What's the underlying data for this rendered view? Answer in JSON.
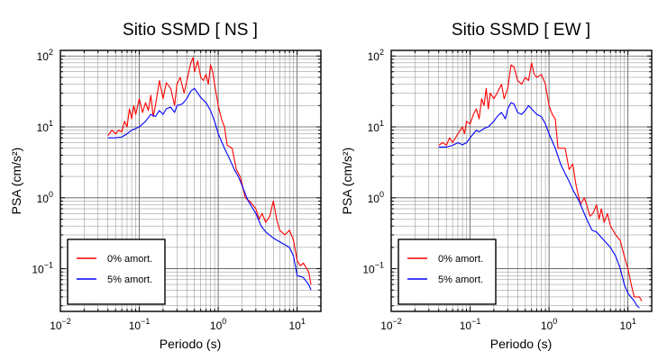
{
  "chart_data": [
    {
      "type": "line",
      "title": "Sitio SSMD [ NS ]",
      "xlabel": "Periodo (s)",
      "ylabel": "PSA (cm/s²)",
      "x_scale": "log",
      "y_scale": "log",
      "xlim": [
        0.01,
        20
      ],
      "ylim": [
        0.025,
        120
      ],
      "x_ticks": [
        0.01,
        0.1,
        1,
        10
      ],
      "x_tick_labels": [
        {
          "base": "10",
          "exp": "−2"
        },
        {
          "base": "10",
          "exp": "−1"
        },
        {
          "base": "10",
          "exp": "0"
        },
        {
          "base": "10",
          "exp": "1"
        }
      ],
      "y_ticks": [
        0.1,
        1,
        10,
        100
      ],
      "y_tick_labels": [
        {
          "base": "10",
          "exp": "−1"
        },
        {
          "base": "10",
          "exp": "0"
        },
        {
          "base": "10",
          "exp": "1"
        },
        {
          "base": "10",
          "exp": "2"
        }
      ],
      "grid": true,
      "legend_position": "bottom-left",
      "series": [
        {
          "name": "0% amort.",
          "color": "#ff0000",
          "points": [
            [
              0.04,
              7.5
            ],
            [
              0.045,
              9
            ],
            [
              0.05,
              8
            ],
            [
              0.055,
              9
            ],
            [
              0.06,
              8.5
            ],
            [
              0.065,
              12
            ],
            [
              0.07,
              10
            ],
            [
              0.075,
              18
            ],
            [
              0.08,
              13
            ],
            [
              0.085,
              20
            ],
            [
              0.09,
              15
            ],
            [
              0.1,
              25
            ],
            [
              0.11,
              16
            ],
            [
              0.12,
              22
            ],
            [
              0.13,
              17
            ],
            [
              0.14,
              28
            ],
            [
              0.15,
              14
            ],
            [
              0.16,
              20
            ],
            [
              0.18,
              45
            ],
            [
              0.2,
              25
            ],
            [
              0.22,
              42
            ],
            [
              0.25,
              35
            ],
            [
              0.28,
              20
            ],
            [
              0.3,
              40
            ],
            [
              0.33,
              50
            ],
            [
              0.37,
              30
            ],
            [
              0.4,
              45
            ],
            [
              0.45,
              80
            ],
            [
              0.48,
              95
            ],
            [
              0.5,
              60
            ],
            [
              0.55,
              85
            ],
            [
              0.6,
              50
            ],
            [
              0.65,
              45
            ],
            [
              0.7,
              55
            ],
            [
              0.75,
              40
            ],
            [
              0.8,
              75
            ],
            [
              0.85,
              60
            ],
            [
              0.9,
              40
            ],
            [
              1.0,
              20
            ],
            [
              1.1,
              13
            ],
            [
              1.2,
              10
            ],
            [
              1.3,
              5.5
            ],
            [
              1.5,
              5
            ],
            [
              1.7,
              2.5
            ],
            [
              1.9,
              2.0
            ],
            [
              2.0,
              1.6
            ],
            [
              2.2,
              1.0
            ],
            [
              2.5,
              0.9
            ],
            [
              3.0,
              0.7
            ],
            [
              3.3,
              0.5
            ],
            [
              3.6,
              0.6
            ],
            [
              4.0,
              0.45
            ],
            [
              4.5,
              0.55
            ],
            [
              5.0,
              0.9
            ],
            [
              5.5,
              0.5
            ],
            [
              6.0,
              0.35
            ],
            [
              7.0,
              0.3
            ],
            [
              8.0,
              0.35
            ],
            [
              9.0,
              0.25
            ],
            [
              10.0,
              0.13
            ],
            [
              11.0,
              0.11
            ],
            [
              12.0,
              0.12
            ],
            [
              14.0,
              0.09
            ],
            [
              15.0,
              0.06
            ]
          ]
        },
        {
          "name": "5% amort.",
          "color": "#0000ff",
          "points": [
            [
              0.04,
              7
            ],
            [
              0.05,
              7
            ],
            [
              0.06,
              7.2
            ],
            [
              0.07,
              8
            ],
            [
              0.08,
              9
            ],
            [
              0.09,
              9.5
            ],
            [
              0.1,
              10
            ],
            [
              0.12,
              12
            ],
            [
              0.14,
              15
            ],
            [
              0.16,
              14
            ],
            [
              0.18,
              17
            ],
            [
              0.2,
              15
            ],
            [
              0.22,
              18
            ],
            [
              0.25,
              19
            ],
            [
              0.28,
              16
            ],
            [
              0.3,
              20
            ],
            [
              0.35,
              21
            ],
            [
              0.4,
              25
            ],
            [
              0.45,
              32
            ],
            [
              0.5,
              35
            ],
            [
              0.55,
              30
            ],
            [
              0.6,
              26
            ],
            [
              0.7,
              22
            ],
            [
              0.8,
              17
            ],
            [
              0.9,
              12
            ],
            [
              1.0,
              8
            ],
            [
              1.2,
              5
            ],
            [
              1.4,
              3.5
            ],
            [
              1.6,
              2.5
            ],
            [
              1.8,
              2.0
            ],
            [
              2.0,
              1.5
            ],
            [
              2.4,
              0.9
            ],
            [
              3.0,
              0.6
            ],
            [
              3.5,
              0.4
            ],
            [
              4.0,
              0.33
            ],
            [
              5.0,
              0.27
            ],
            [
              6.0,
              0.24
            ],
            [
              8.0,
              0.2
            ],
            [
              9.0,
              0.15
            ],
            [
              10.0,
              0.08
            ],
            [
              12.0,
              0.075
            ],
            [
              14.0,
              0.06
            ],
            [
              15.0,
              0.05
            ]
          ]
        }
      ]
    },
    {
      "type": "line",
      "title": "Sitio SSMD [ EW ]",
      "xlabel": "Periodo (s)",
      "ylabel": "PSA (cm/s²)",
      "x_scale": "log",
      "y_scale": "log",
      "xlim": [
        0.01,
        20
      ],
      "ylim": [
        0.025,
        120
      ],
      "x_ticks": [
        0.01,
        0.1,
        1,
        10
      ],
      "x_tick_labels": [
        {
          "base": "10",
          "exp": "−2"
        },
        {
          "base": "10",
          "exp": "−1"
        },
        {
          "base": "10",
          "exp": "0"
        },
        {
          "base": "10",
          "exp": "1"
        }
      ],
      "y_ticks": [
        0.1,
        1,
        10,
        100
      ],
      "y_tick_labels": [
        {
          "base": "10",
          "exp": "−1"
        },
        {
          "base": "10",
          "exp": "0"
        },
        {
          "base": "10",
          "exp": "1"
        },
        {
          "base": "10",
          "exp": "2"
        }
      ],
      "grid": true,
      "legend_position": "bottom-left",
      "series": [
        {
          "name": "0% amort.",
          "color": "#ff0000",
          "points": [
            [
              0.04,
              5.5
            ],
            [
              0.045,
              6
            ],
            [
              0.05,
              5.5
            ],
            [
              0.055,
              7
            ],
            [
              0.06,
              6
            ],
            [
              0.07,
              8
            ],
            [
              0.08,
              10
            ],
            [
              0.085,
              8
            ],
            [
              0.09,
              12
            ],
            [
              0.1,
              11
            ],
            [
              0.11,
              15
            ],
            [
              0.12,
              18
            ],
            [
              0.13,
              13
            ],
            [
              0.14,
              25
            ],
            [
              0.15,
              20
            ],
            [
              0.16,
              35
            ],
            [
              0.17,
              18
            ],
            [
              0.18,
              30
            ],
            [
              0.2,
              25
            ],
            [
              0.22,
              30
            ],
            [
              0.25,
              40
            ],
            [
              0.27,
              25
            ],
            [
              0.3,
              35
            ],
            [
              0.33,
              75
            ],
            [
              0.36,
              70
            ],
            [
              0.4,
              45
            ],
            [
              0.45,
              40
            ],
            [
              0.5,
              50
            ],
            [
              0.55,
              45
            ],
            [
              0.6,
              80
            ],
            [
              0.65,
              55
            ],
            [
              0.7,
              50
            ],
            [
              0.8,
              55
            ],
            [
              0.9,
              40
            ],
            [
              1.0,
              20
            ],
            [
              1.1,
              15
            ],
            [
              1.2,
              13
            ],
            [
              1.3,
              5
            ],
            [
              1.6,
              5
            ],
            [
              1.8,
              2.5
            ],
            [
              2.0,
              3
            ],
            [
              2.2,
              1.5
            ],
            [
              2.5,
              0.8
            ],
            [
              2.8,
              1.0
            ],
            [
              3.0,
              0.8
            ],
            [
              3.3,
              0.55
            ],
            [
              3.6,
              0.6
            ],
            [
              4.0,
              0.8
            ],
            [
              4.3,
              0.5
            ],
            [
              4.6,
              0.7
            ],
            [
              5.0,
              0.45
            ],
            [
              5.5,
              0.6
            ],
            [
              6.0,
              0.4
            ],
            [
              7.0,
              0.3
            ],
            [
              8.0,
              0.25
            ],
            [
              9.0,
              0.15
            ],
            [
              10.0,
              0.1
            ],
            [
              11.0,
              0.06
            ],
            [
              12.0,
              0.04
            ],
            [
              14.0,
              0.04
            ],
            [
              15.0,
              0.035
            ]
          ]
        },
        {
          "name": "5% amort.",
          "color": "#0000ff",
          "points": [
            [
              0.04,
              5.2
            ],
            [
              0.05,
              5.2
            ],
            [
              0.06,
              5.5
            ],
            [
              0.07,
              6
            ],
            [
              0.08,
              5.6
            ],
            [
              0.09,
              6
            ],
            [
              0.1,
              7
            ],
            [
              0.11,
              8
            ],
            [
              0.12,
              9
            ],
            [
              0.13,
              8.5
            ],
            [
              0.15,
              9.5
            ],
            [
              0.17,
              10
            ],
            [
              0.2,
              12
            ],
            [
              0.22,
              14
            ],
            [
              0.25,
              16
            ],
            [
              0.28,
              13
            ],
            [
              0.3,
              18
            ],
            [
              0.33,
              22
            ],
            [
              0.36,
              21
            ],
            [
              0.4,
              16
            ],
            [
              0.45,
              15
            ],
            [
              0.5,
              17
            ],
            [
              0.55,
              20
            ],
            [
              0.6,
              18
            ],
            [
              0.7,
              15
            ],
            [
              0.8,
              14
            ],
            [
              0.9,
              11
            ],
            [
              1.0,
              8
            ],
            [
              1.2,
              5
            ],
            [
              1.4,
              3.0
            ],
            [
              1.6,
              2.2
            ],
            [
              1.8,
              1.7
            ],
            [
              2.0,
              1.3
            ],
            [
              2.4,
              0.9
            ],
            [
              3.0,
              0.5
            ],
            [
              3.5,
              0.35
            ],
            [
              4.0,
              0.33
            ],
            [
              5.0,
              0.25
            ],
            [
              6.0,
              0.2
            ],
            [
              7.0,
              0.15
            ],
            [
              8.0,
              0.1
            ],
            [
              9.0,
              0.06
            ],
            [
              10.0,
              0.045
            ],
            [
              12.0,
              0.035
            ],
            [
              13.0,
              0.03
            ],
            [
              14.0,
              0.028
            ]
          ]
        }
      ]
    }
  ]
}
